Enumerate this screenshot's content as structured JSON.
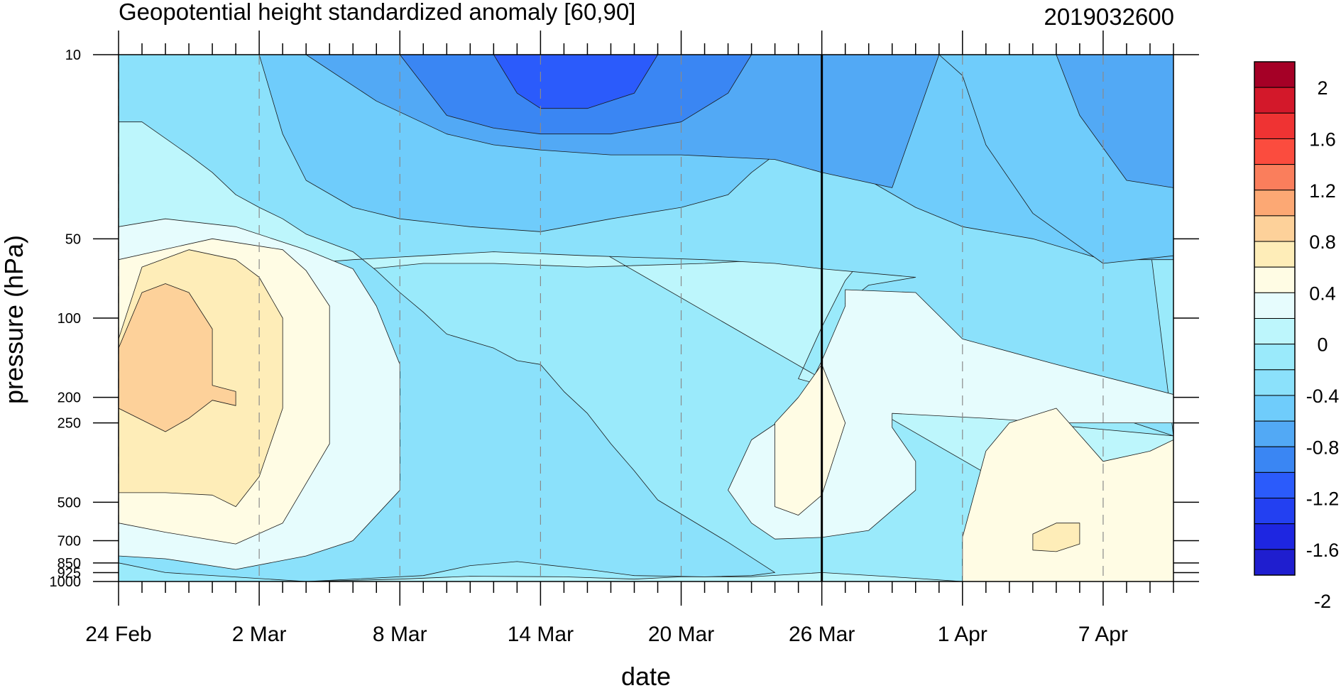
{
  "chart_data": {
    "type": "heatmap",
    "subtype": "filled-contour time-pressure cross-section",
    "title": "Geopotential height standardized anomaly [60,90]",
    "timestamp_label": "2019032600",
    "xlabel": "date",
    "ylabel": "pressure (hPa)",
    "x_ticks": [
      {
        "label": "24 Feb",
        "day": 0
      },
      {
        "label": "2 Mar",
        "day": 6
      },
      {
        "label": "8 Mar",
        "day": 12
      },
      {
        "label": "14 Mar",
        "day": 18
      },
      {
        "label": "20 Mar",
        "day": 24
      },
      {
        "label": "26 Mar",
        "day": 30
      },
      {
        "label": "1 Apr",
        "day": 36
      },
      {
        "label": "7 Apr",
        "day": 42
      }
    ],
    "x_range_days": [
      0,
      45
    ],
    "marker_line_day": 30,
    "y_scale": "log (reversed)",
    "y_range": [
      1000,
      10
    ],
    "y_ticks": [
      10,
      50,
      100,
      200,
      250,
      500,
      700,
      850,
      925,
      1000
    ],
    "y_tick_labels": [
      "10",
      "50",
      "100",
      "200",
      "250",
      "500",
      "700",
      "850",
      "925",
      "1000"
    ],
    "colorbar": {
      "labels": [
        "2",
        "1.6",
        "1.2",
        "0.8",
        "0.4",
        "0",
        "-0.4",
        "-0.8",
        "-1.2",
        "-1.6",
        "-2"
      ],
      "colors_top_to_bottom": [
        "#A50026",
        "#D3182A",
        "#EF3333",
        "#FB4C3E",
        "#FA7E5C",
        "#FCA874",
        "#FDD19A",
        "#FEEDB8",
        "#FFFCE4",
        "#E6FCFD",
        "#BDF6FC",
        "#9AEAFB",
        "#8BE1FB",
        "#6FCCFB",
        "#52A9F5",
        "#3A86F3",
        "#2B5BFB",
        "#2340F1",
        "#1E26E1",
        "#1F1ECF"
      ]
    },
    "level_colors": {
      "-2.0": "#1E26E1",
      "-1.6": "#2B5BFB",
      "-1.4": "#3A86F3",
      "-1.2": "#52A9F5",
      "-1.0": "#6FCCFB",
      "-0.8": "#8BE1FB",
      "-0.6": "#9AEAFB",
      "-0.4": "#BDF6FC",
      "-0.2": "#E6FCFD",
      "0.0": "#FFFCE4",
      "0.2": "#FEEDB8",
      "0.4": "#FDD19A"
    },
    "regions": [
      {
        "level": "-0.4",
        "points": [
          [
            0,
            10
          ],
          [
            45,
            10
          ],
          [
            45,
            1000
          ],
          [
            0,
            1000
          ]
        ]
      },
      {
        "level": "-0.6",
        "points": [
          [
            6,
            10
          ],
          [
            45,
            10
          ],
          [
            45,
            280
          ],
          [
            40,
            255
          ],
          [
            37,
            225
          ],
          [
            33,
            215
          ],
          [
            31,
            190
          ],
          [
            29,
            170
          ],
          [
            30,
            108
          ],
          [
            31,
            72
          ],
          [
            32,
            56
          ],
          [
            28,
            60
          ],
          [
            25,
            62
          ],
          [
            20,
            64
          ],
          [
            16,
            62
          ],
          [
            13,
            62
          ],
          [
            10,
            66
          ],
          [
            7,
            74
          ],
          [
            6,
            78
          ],
          [
            4,
            88
          ],
          [
            2,
            98
          ],
          [
            0,
            110
          ],
          [
            0,
            1000
          ],
          [
            8,
            1000
          ],
          [
            12,
            980
          ],
          [
            15,
            955
          ],
          [
            19,
            960
          ],
          [
            22,
            980
          ],
          [
            24,
            960
          ],
          [
            27,
            960
          ],
          [
            30,
            925
          ],
          [
            33,
            960
          ],
          [
            36,
            1000
          ],
          [
            45,
            1000
          ]
        ]
      },
      {
        "level": "-0.8",
        "points": [
          [
            6,
            10
          ],
          [
            43,
            10
          ],
          [
            45,
            280
          ],
          [
            40,
            200
          ],
          [
            38,
            150
          ],
          [
            36,
            140
          ],
          [
            35,
            135
          ],
          [
            32,
            105
          ],
          [
            31,
            88
          ],
          [
            32,
            75
          ],
          [
            34,
            70
          ],
          [
            30,
            65
          ],
          [
            28,
            62
          ],
          [
            25,
            60
          ],
          [
            20,
            58
          ],
          [
            16,
            56
          ],
          [
            13,
            58
          ],
          [
            10,
            60
          ],
          [
            8,
            62
          ],
          [
            7,
            66
          ],
          [
            6,
            70
          ],
          [
            4,
            80
          ],
          [
            2,
            88
          ],
          [
            1,
            95
          ],
          [
            0,
            100
          ],
          [
            0,
            850
          ],
          [
            2,
            925
          ],
          [
            8,
            1000
          ],
          [
            13,
            950
          ],
          [
            15,
            870
          ],
          [
            17,
            840
          ],
          [
            20,
            900
          ],
          [
            22,
            950
          ],
          [
            25,
            960
          ],
          [
            27,
            950
          ],
          [
            28,
            925
          ],
          [
            26,
            710
          ],
          [
            23,
            490
          ],
          [
            22,
            380
          ],
          [
            21,
            300
          ],
          [
            20,
            230
          ],
          [
            19,
            190
          ],
          [
            18,
            150
          ],
          [
            17,
            145
          ],
          [
            16,
            130
          ],
          [
            14,
            115
          ],
          [
            13,
            95
          ],
          [
            12,
            80
          ],
          [
            11,
            66
          ],
          [
            10,
            56
          ],
          [
            8,
            48
          ],
          [
            7,
            42
          ],
          [
            6,
            38
          ],
          [
            5,
            34
          ],
          [
            4,
            28
          ],
          [
            3,
            24
          ],
          [
            1,
            18
          ],
          [
            0,
            18
          ],
          [
            0,
            10
          ]
        ]
      },
      {
        "level": "-1.0",
        "points": [
          [
            6,
            10
          ],
          [
            45,
            10
          ],
          [
            45,
            60
          ],
          [
            42,
            60
          ],
          [
            39,
            50
          ],
          [
            36,
            45
          ],
          [
            34,
            38
          ],
          [
            32,
            30
          ],
          [
            30,
            25
          ],
          [
            28,
            24
          ],
          [
            27,
            28
          ],
          [
            26,
            34
          ],
          [
            24,
            38
          ],
          [
            21,
            42
          ],
          [
            18,
            47
          ],
          [
            15,
            45
          ],
          [
            12,
            42
          ],
          [
            10,
            38
          ],
          [
            8,
            30
          ],
          [
            7,
            20
          ],
          [
            6,
            10
          ]
        ]
      },
      {
        "level": "-1.2",
        "points": [
          [
            8,
            10
          ],
          [
            35,
            10
          ],
          [
            33,
            32
          ],
          [
            30,
            28
          ],
          [
            28,
            25
          ],
          [
            24,
            24
          ],
          [
            21,
            24
          ],
          [
            18,
            23
          ],
          [
            16,
            22
          ],
          [
            14,
            20
          ],
          [
            11,
            15
          ],
          [
            8,
            10
          ]
        ]
      },
      {
        "level": "-1.4",
        "points": [
          [
            12,
            10
          ],
          [
            27,
            10
          ],
          [
            26,
            14
          ],
          [
            24,
            18
          ],
          [
            21,
            20
          ],
          [
            18,
            20
          ],
          [
            16,
            19
          ],
          [
            14,
            17
          ],
          [
            12,
            10
          ]
        ]
      },
      {
        "level": "-1.6",
        "points": [
          [
            16,
            10
          ],
          [
            23,
            10
          ],
          [
            22,
            14
          ],
          [
            20,
            16
          ],
          [
            18,
            16
          ],
          [
            17,
            14
          ],
          [
            16,
            10
          ]
        ]
      },
      {
        "level": "-1.0",
        "points": [
          [
            35,
            10
          ],
          [
            45,
            10
          ],
          [
            45,
            58
          ],
          [
            42,
            62
          ],
          [
            39,
            40
          ],
          [
            37,
            22
          ],
          [
            36,
            12
          ],
          [
            35,
            10
          ]
        ]
      },
      {
        "level": "-1.2",
        "points": [
          [
            40,
            10
          ],
          [
            45,
            10
          ],
          [
            45,
            32
          ],
          [
            43,
            30
          ],
          [
            41,
            17
          ],
          [
            40,
            10
          ]
        ]
      },
      {
        "level": "-0.2",
        "points": [
          [
            0,
            45
          ],
          [
            2,
            42
          ],
          [
            5,
            45
          ],
          [
            8,
            55
          ],
          [
            10,
            65
          ],
          [
            11,
            90
          ],
          [
            12,
            150
          ],
          [
            12,
            450
          ],
          [
            10,
            700
          ],
          [
            8,
            800
          ],
          [
            5,
            900
          ],
          [
            2,
            820
          ],
          [
            0,
            800
          ]
        ]
      },
      {
        "level": "-0.2",
        "points": [
          [
            27,
            290
          ],
          [
            29,
            220
          ],
          [
            30,
            145
          ],
          [
            31,
            90
          ],
          [
            31,
            78
          ],
          [
            34,
            80
          ],
          [
            36,
            120
          ],
          [
            40,
            150
          ],
          [
            45,
            195
          ],
          [
            45,
            250
          ],
          [
            40,
            250
          ],
          [
            37,
            240
          ],
          [
            33,
            230
          ],
          [
            33,
            260
          ],
          [
            34,
            350
          ],
          [
            34,
            450
          ],
          [
            32,
            640
          ],
          [
            30,
            680
          ],
          [
            28,
            690
          ],
          [
            27,
            600
          ],
          [
            26,
            450
          ],
          [
            27,
            290
          ]
        ]
      },
      {
        "level": "0.0",
        "points": [
          [
            0,
            60
          ],
          [
            4,
            50
          ],
          [
            7,
            55
          ],
          [
            8,
            66
          ],
          [
            9,
            90
          ],
          [
            9,
            200
          ],
          [
            9,
            300
          ],
          [
            7,
            600
          ],
          [
            5,
            720
          ],
          [
            2,
            650
          ],
          [
            0,
            600
          ]
        ]
      },
      {
        "level": "0.0",
        "points": [
          [
            28,
            250
          ],
          [
            29,
            200
          ],
          [
            30,
            150
          ],
          [
            31,
            250
          ],
          [
            30,
            470
          ],
          [
            29,
            560
          ],
          [
            28,
            520
          ],
          [
            28,
            250
          ]
        ]
      },
      {
        "level": "0.0",
        "points": [
          [
            36,
            1000
          ],
          [
            36,
            680
          ],
          [
            37,
            320
          ],
          [
            38,
            250
          ],
          [
            40,
            220
          ],
          [
            42,
            350
          ],
          [
            44,
            320
          ],
          [
            45,
            290
          ],
          [
            45,
            1000
          ]
        ]
      },
      {
        "level": "0.2",
        "points": [
          [
            0,
            120
          ],
          [
            1,
            64
          ],
          [
            3,
            55
          ],
          [
            5,
            60
          ],
          [
            6,
            70
          ],
          [
            7,
            100
          ],
          [
            7,
            220
          ],
          [
            6,
            400
          ],
          [
            5,
            520
          ],
          [
            4,
            470
          ],
          [
            2,
            460
          ],
          [
            0,
            460
          ]
        ]
      },
      {
        "level": "0.2",
        "points": [
          [
            39,
            660
          ],
          [
            40,
            600
          ],
          [
            41,
            600
          ],
          [
            41,
            720
          ],
          [
            40,
            770
          ],
          [
            39,
            760
          ],
          [
            39,
            660
          ]
        ]
      },
      {
        "level": "0.4",
        "points": [
          [
            0,
            130
          ],
          [
            1,
            80
          ],
          [
            2,
            74
          ],
          [
            3,
            80
          ],
          [
            4,
            110
          ],
          [
            4,
            180
          ],
          [
            5,
            190
          ],
          [
            5,
            215
          ],
          [
            4,
            205
          ],
          [
            3,
            240
          ],
          [
            2,
            270
          ],
          [
            0,
            220
          ]
        ]
      }
    ]
  }
}
